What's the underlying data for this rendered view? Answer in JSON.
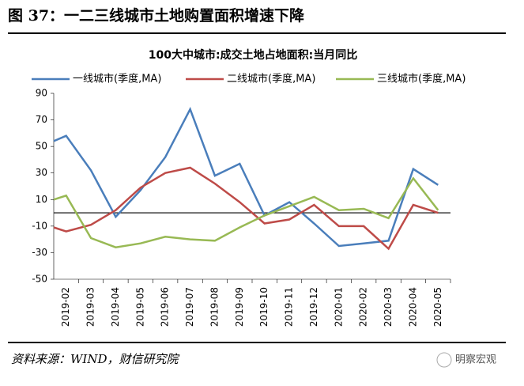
{
  "figure_title": "图 37：一二三线城市土地购置面积增速下降",
  "source": "资料来源：WIND，财信研究院",
  "watermark": "明察宏观",
  "chart_data": {
    "type": "line",
    "title": "100大中城市:成交土地占地面积:当月同比",
    "categories": [
      null,
      "2019-02",
      "2019-03",
      "2019-04",
      "2019-05",
      "2019-06",
      "2019-07",
      "2019-08",
      "2019-09",
      "2019-10",
      "2019-11",
      "2019-12",
      "2020-01",
      "2020-02",
      "2020-03",
      "2020-04",
      "2020-05"
    ],
    "series": [
      {
        "name": "一线城市(季度,MA)",
        "color": "#4a7ebb",
        "values": [
          54,
          58,
          32,
          -3,
          17,
          42,
          78,
          28,
          37,
          -2,
          8,
          -8,
          -25,
          -23,
          -21,
          33,
          21
        ]
      },
      {
        "name": "二线城市(季度,MA)",
        "color": "#be4b48",
        "values": [
          -11,
          -14,
          -9,
          2,
          19,
          30,
          34,
          22,
          8,
          -8,
          -5,
          6,
          -10,
          -10,
          -27,
          6,
          0
        ]
      },
      {
        "name": "三线城市(季度,MA)",
        "color": "#98b954",
        "values": [
          10,
          13,
          -19,
          -26,
          -23,
          -18,
          -20,
          -21,
          -11,
          -2,
          5,
          12,
          2,
          3,
          -4,
          26,
          2
        ]
      }
    ],
    "ylim": [
      -50,
      90
    ],
    "yticks": [
      -50,
      -30,
      -10,
      10,
      30,
      50,
      70,
      90
    ],
    "legend": "top"
  }
}
